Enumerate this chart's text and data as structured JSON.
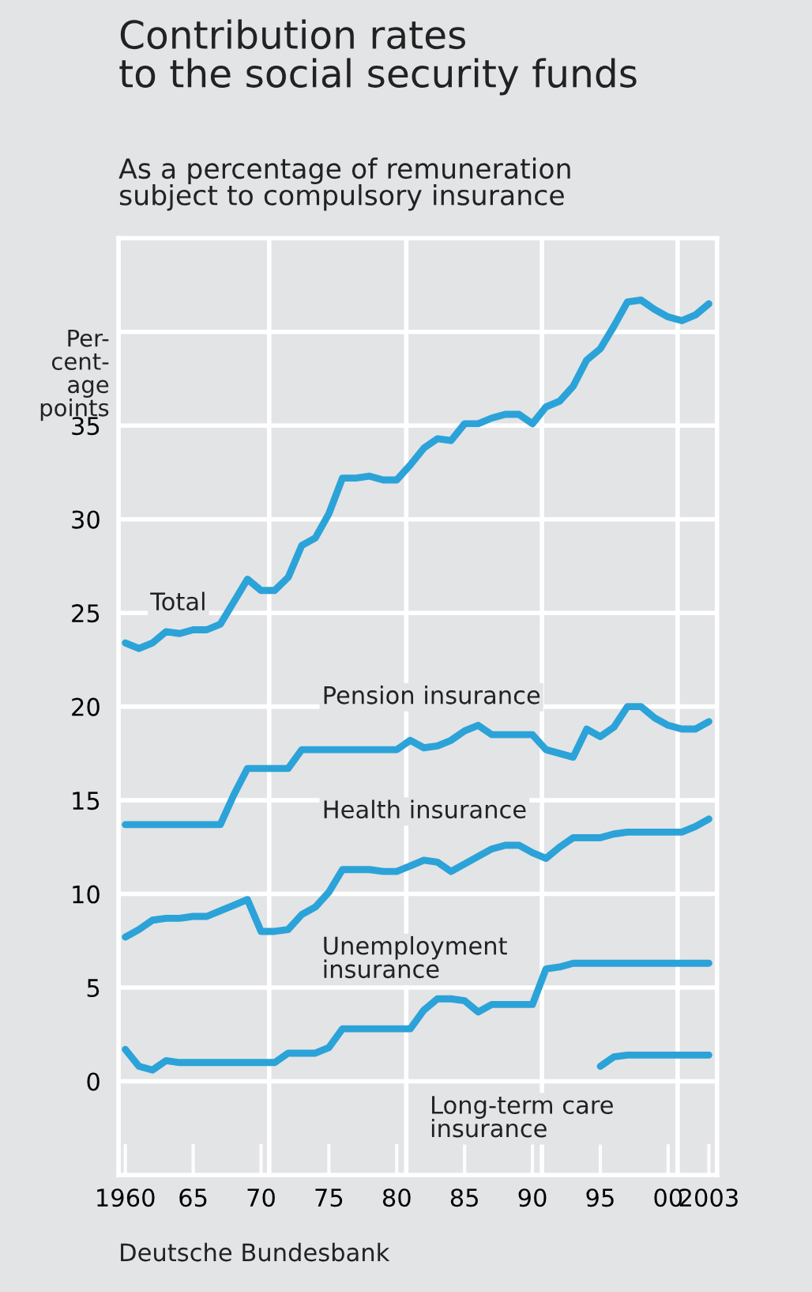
{
  "chart_data": {
    "type": "line",
    "title": "Contribution rates\nto the social security funds",
    "subtitle": "As a percentage of remuneration\nsubject to compulsory insurance",
    "ylabel": "Per-\ncent-\nage\npoints",
    "annotations": [
      "Deutsche Bundesbank"
    ],
    "x": [
      1960,
      1961,
      1962,
      1963,
      1964,
      1965,
      1966,
      1967,
      1968,
      1969,
      1970,
      1971,
      1972,
      1973,
      1974,
      1975,
      1976,
      1977,
      1978,
      1979,
      1980,
      1981,
      1982,
      1983,
      1984,
      1985,
      1986,
      1987,
      1988,
      1989,
      1990,
      1991,
      1992,
      1993,
      1994,
      1995,
      1996,
      1997,
      1998,
      1999,
      2000,
      2001,
      2002,
      2003
    ],
    "series": [
      {
        "name": "Total",
        "color": "#2ba3d8",
        "values": [
          23.4,
          23.1,
          23.4,
          24.0,
          23.9,
          24.1,
          24.1,
          24.4,
          25.6,
          26.8,
          26.2,
          26.2,
          26.9,
          28.6,
          29.0,
          30.3,
          32.2,
          32.2,
          32.3,
          32.1,
          32.1,
          32.9,
          33.8,
          34.3,
          34.2,
          35.1,
          35.1,
          35.4,
          35.6,
          35.6,
          35.1,
          36.0,
          36.3,
          37.1,
          38.5,
          39.1,
          40.3,
          41.6,
          41.7,
          41.2,
          40.8,
          40.6,
          40.9,
          41.5
        ]
      },
      {
        "name": "Pension insurance",
        "color": "#2ba3d8",
        "values": [
          13.7,
          13.7,
          13.7,
          13.7,
          13.7,
          13.7,
          13.7,
          13.7,
          15.3,
          16.7,
          16.7,
          16.7,
          16.7,
          17.7,
          17.7,
          17.7,
          17.7,
          17.7,
          17.7,
          17.7,
          17.7,
          18.2,
          17.8,
          17.9,
          18.2,
          18.7,
          19.0,
          18.5,
          18.5,
          18.5,
          18.5,
          17.7,
          17.5,
          17.3,
          18.8,
          18.4,
          18.9,
          20.0,
          20.0,
          19.4,
          19.0,
          18.8,
          18.8,
          19.2
        ]
      },
      {
        "name": "Health insurance",
        "color": "#2ba3d8",
        "values": [
          7.7,
          8.1,
          8.6,
          8.7,
          8.7,
          8.8,
          8.8,
          9.1,
          9.4,
          9.7,
          8.0,
          8.0,
          8.1,
          8.9,
          9.3,
          10.1,
          11.3,
          11.3,
          11.3,
          11.2,
          11.2,
          11.5,
          11.8,
          11.7,
          11.2,
          11.6,
          12.0,
          12.4,
          12.6,
          12.6,
          12.2,
          11.9,
          12.5,
          13.0,
          13.0,
          13.0,
          13.2,
          13.3,
          13.3,
          13.3,
          13.3,
          13.3,
          13.6,
          14.0
        ]
      },
      {
        "name": "Unemployment\ninsurance",
        "color": "#2ba3d8",
        "values": [
          1.7,
          0.8,
          0.6,
          1.1,
          1.0,
          1.0,
          1.0,
          1.0,
          1.0,
          1.0,
          1.0,
          1.0,
          1.5,
          1.5,
          1.5,
          1.8,
          2.8,
          2.8,
          2.8,
          2.8,
          2.8,
          2.8,
          3.8,
          4.4,
          4.4,
          4.3,
          3.7,
          4.1,
          4.1,
          4.1,
          4.1,
          6.0,
          6.1,
          6.3,
          6.3,
          6.3,
          6.3,
          6.3,
          6.3,
          6.3,
          6.3,
          6.3,
          6.3,
          6.3
        ]
      },
      {
        "name": "Long-term care\ninsurance",
        "color": "#2ba3d8",
        "values": [
          null,
          null,
          null,
          null,
          null,
          null,
          null,
          null,
          null,
          null,
          null,
          null,
          null,
          null,
          null,
          null,
          null,
          null,
          null,
          null,
          null,
          null,
          null,
          null,
          null,
          null,
          null,
          null,
          null,
          null,
          null,
          null,
          null,
          null,
          null,
          0.8,
          1.3,
          1.4,
          1.4,
          1.4,
          1.4,
          1.4,
          1.4,
          1.4
        ]
      }
    ],
    "xlim": [
      1959.5,
      2003.6
    ],
    "xticks": [
      {
        "value": 1960,
        "label": "1960"
      },
      {
        "value": 1965,
        "label": "65"
      },
      {
        "value": 1970,
        "label": "70"
      },
      {
        "value": 1975,
        "label": "75"
      },
      {
        "value": 1980,
        "label": "80"
      },
      {
        "value": 1985,
        "label": "85"
      },
      {
        "value": 1990,
        "label": "90"
      },
      {
        "value": 1995,
        "label": "95"
      },
      {
        "value": 2000,
        "label": "00"
      },
      {
        "value": 2003,
        "label": "2003"
      }
    ],
    "ylim": [
      -5,
      45
    ],
    "yticks": [
      0,
      5,
      10,
      15,
      20,
      25,
      30,
      35,
      {
        "value": 40,
        "label": null
      }
    ],
    "ref_lines": [
      {
        "axis": "x",
        "value": 1970.6,
        "color": "#ffffff"
      },
      {
        "axis": "x",
        "value": 1980.7,
        "color": "#ffffff"
      },
      {
        "axis": "x",
        "value": 1990.7,
        "color": "#ffffff"
      },
      {
        "axis": "x",
        "value": 2000.7,
        "color": "#ffffff"
      }
    ],
    "grid": "y",
    "legend": false,
    "marker": "none",
    "line_style": "solid"
  }
}
